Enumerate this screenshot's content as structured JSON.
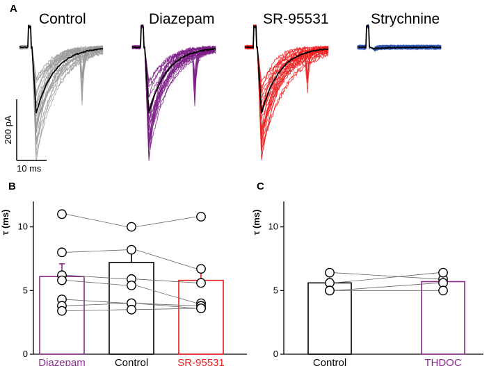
{
  "panel_a": {
    "letter": "A",
    "titles": [
      {
        "label": "Control",
        "color": "#000000",
        "trace_color": "#9a9a9a"
      },
      {
        "label": "Diazepam",
        "color": "#8b2a8c",
        "trace_color": "#7b1f86"
      },
      {
        "label": "SR-95531",
        "color": "#e8191b",
        "trace_color": "#ee1c1c"
      },
      {
        "label": "Strychnine",
        "color": "#2a4fa5",
        "trace_color": "#2f56b4"
      }
    ],
    "scale_bar": {
      "amplitude_label": "200 pA",
      "time_label": "10 ms"
    }
  },
  "chart_data": [
    {
      "type": "bar",
      "panel": "B",
      "ylabel": "τ (ms)",
      "ylim": [
        0,
        12
      ],
      "yticks": [
        0,
        5,
        10
      ],
      "categories": [
        "Diazepam",
        "Control",
        "SR-95531"
      ],
      "category_colors": [
        "#8b2a8c",
        "#000000",
        "#e8191b"
      ],
      "means": [
        6.1,
        7.2,
        5.8
      ],
      "sem": [
        1.0,
        0.85,
        1.0
      ],
      "paired_cells": [
        [
          11.0,
          10.0,
          10.8
        ],
        [
          8.0,
          8.2,
          6.7
        ],
        [
          6.2,
          5.9,
          5.6
        ],
        [
          5.8,
          5.4,
          4.0
        ],
        [
          4.3,
          4.0,
          3.8
        ],
        [
          3.8,
          4.0,
          3.6
        ],
        [
          3.4,
          3.5,
          3.6
        ]
      ]
    },
    {
      "type": "bar",
      "panel": "C",
      "ylabel": "τ (ms)",
      "ylim": [
        0,
        12
      ],
      "yticks": [
        0,
        5,
        10
      ],
      "categories": [
        "Control",
        "THDOC"
      ],
      "category_colors": [
        "#000000",
        "#8b2a8c"
      ],
      "means": [
        5.6,
        5.7
      ],
      "sem": [
        0.3,
        0.3
      ],
      "paired_cells": [
        [
          6.4,
          5.9
        ],
        [
          5.6,
          6.4
        ],
        [
          5.0,
          5.6
        ],
        [
          5.0,
          5.0
        ]
      ]
    }
  ]
}
